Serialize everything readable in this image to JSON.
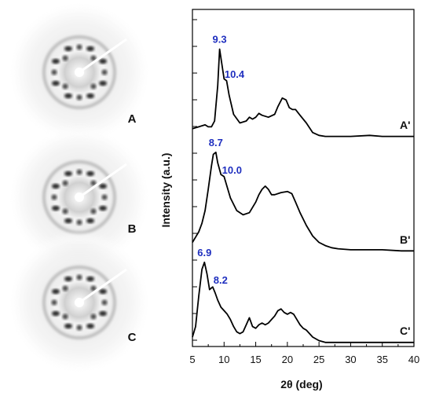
{
  "figure": {
    "pattern_labels": [
      "A",
      "B",
      "C"
    ]
  },
  "chart_data": {
    "type": "line",
    "xlabel": "2θ (deg)",
    "ylabel": "Intensity (a.u.)",
    "xlim": [
      5,
      40
    ],
    "xticks": [
      5,
      10,
      15,
      20,
      25,
      30,
      35,
      40
    ],
    "grid": false,
    "series": [
      {
        "name": "A'",
        "x": [
          5,
          6,
          7,
          7.5,
          8,
          8.5,
          9,
          9.3,
          9.7,
          10,
          10.4,
          10.8,
          11.5,
          12.5,
          13.5,
          14,
          14.5,
          15,
          15.5,
          16,
          17,
          18,
          18.5,
          19.2,
          19.8,
          20.3,
          20.8,
          21.3,
          22,
          23,
          24,
          25,
          26,
          27,
          30,
          33,
          35,
          38,
          40
        ],
        "y": [
          0.1,
          0.12,
          0.14,
          0.12,
          0.12,
          0.18,
          0.55,
          0.93,
          0.75,
          0.62,
          0.6,
          0.45,
          0.25,
          0.16,
          0.18,
          0.22,
          0.2,
          0.22,
          0.26,
          0.24,
          0.22,
          0.25,
          0.33,
          0.42,
          0.4,
          0.32,
          0.3,
          0.3,
          0.24,
          0.16,
          0.06,
          0.03,
          0.02,
          0.02,
          0.02,
          0.03,
          0.02,
          0.02,
          0.02
        ],
        "peak_labels": [
          {
            "x": 9.3,
            "text": "9.3"
          },
          {
            "x": 10.4,
            "text": "10.4"
          }
        ]
      },
      {
        "name": "B'",
        "x": [
          5,
          5.5,
          6,
          6.5,
          7,
          7.5,
          8,
          8.3,
          8.7,
          9,
          9.5,
          10,
          10.5,
          11,
          12,
          13,
          14,
          15,
          15.5,
          16,
          16.5,
          17,
          17.5,
          18,
          19,
          20,
          20.7,
          21.3,
          22,
          23,
          24,
          25,
          26,
          27,
          28,
          30,
          33,
          35,
          38,
          40
        ],
        "y": [
          0.1,
          0.15,
          0.2,
          0.28,
          0.4,
          0.6,
          0.82,
          0.93,
          0.95,
          0.85,
          0.74,
          0.72,
          0.62,
          0.52,
          0.4,
          0.36,
          0.38,
          0.48,
          0.55,
          0.6,
          0.63,
          0.6,
          0.55,
          0.55,
          0.57,
          0.58,
          0.56,
          0.48,
          0.38,
          0.26,
          0.16,
          0.1,
          0.07,
          0.05,
          0.04,
          0.03,
          0.03,
          0.03,
          0.02,
          0.02
        ],
        "peak_labels": [
          {
            "x": 8.7,
            "text": "8.7"
          },
          {
            "x": 10.0,
            "text": "10.0"
          }
        ]
      },
      {
        "name": "C'",
        "x": [
          5,
          5.5,
          6,
          6.5,
          6.9,
          7.3,
          7.7,
          8.2,
          8.6,
          9,
          9.5,
          10,
          10.5,
          11,
          11.5,
          12,
          12.5,
          13,
          13.5,
          14,
          14.5,
          15,
          15.5,
          16,
          16.5,
          17,
          17.5,
          18,
          18.5,
          19,
          19.5,
          20,
          20.5,
          21,
          21.5,
          22,
          22.5,
          23,
          24,
          25,
          26,
          30,
          35,
          40
        ],
        "y": [
          0.08,
          0.2,
          0.55,
          0.85,
          0.93,
          0.8,
          0.62,
          0.65,
          0.58,
          0.5,
          0.42,
          0.38,
          0.34,
          0.28,
          0.2,
          0.14,
          0.12,
          0.14,
          0.22,
          0.3,
          0.2,
          0.18,
          0.22,
          0.24,
          0.22,
          0.24,
          0.28,
          0.32,
          0.38,
          0.4,
          0.36,
          0.34,
          0.36,
          0.34,
          0.28,
          0.22,
          0.18,
          0.16,
          0.08,
          0.04,
          0.02,
          0.02,
          0.02,
          0.02
        ],
        "peak_labels": [
          {
            "x": 6.9,
            "text": "6.9"
          },
          {
            "x": 8.2,
            "text": "8.2"
          }
        ]
      }
    ]
  }
}
